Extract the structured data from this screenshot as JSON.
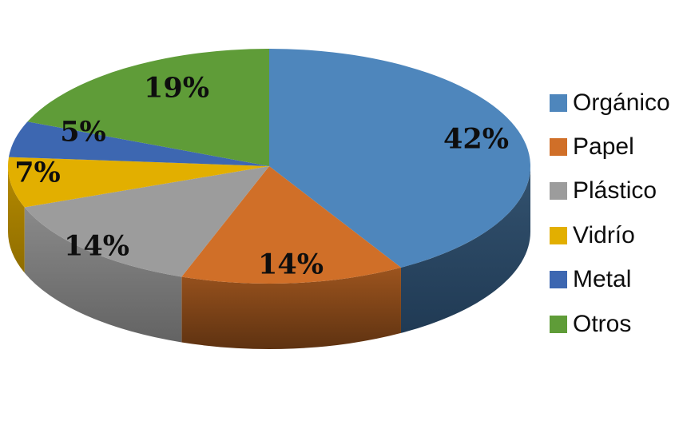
{
  "chart_data": {
    "type": "pie",
    "style": "3d",
    "title": "",
    "labels": [
      "Orgánico",
      "Papel",
      "Plástico",
      "Vidrío",
      "Metal",
      "Otros"
    ],
    "values": [
      42,
      14,
      14,
      7,
      5,
      19
    ],
    "unit": "%",
    "point_labels": [
      "42%",
      "14%",
      "14%",
      "7%",
      "5%",
      "19%"
    ],
    "colors": [
      "#4E86BC",
      "#D06F28",
      "#9C9C9C",
      "#E2AF00",
      "#3D67B1",
      "#5F9C38"
    ],
    "side_colors": [
      [
        "#33526F",
        "#203A54"
      ],
      [
        "#9C541E",
        "#5E3211"
      ],
      [
        "#8A8A8A",
        "#636363"
      ],
      [
        "#B58A00",
        "#8F6D00"
      ],
      [
        "#2E4D85",
        "#243C68"
      ],
      [
        "#47742A",
        "#385C21"
      ]
    ],
    "label_color": "#0e0e0e",
    "background": "#FFFFFF",
    "start_angle": 0,
    "direction": "clockwise",
    "legend_position": "right"
  }
}
